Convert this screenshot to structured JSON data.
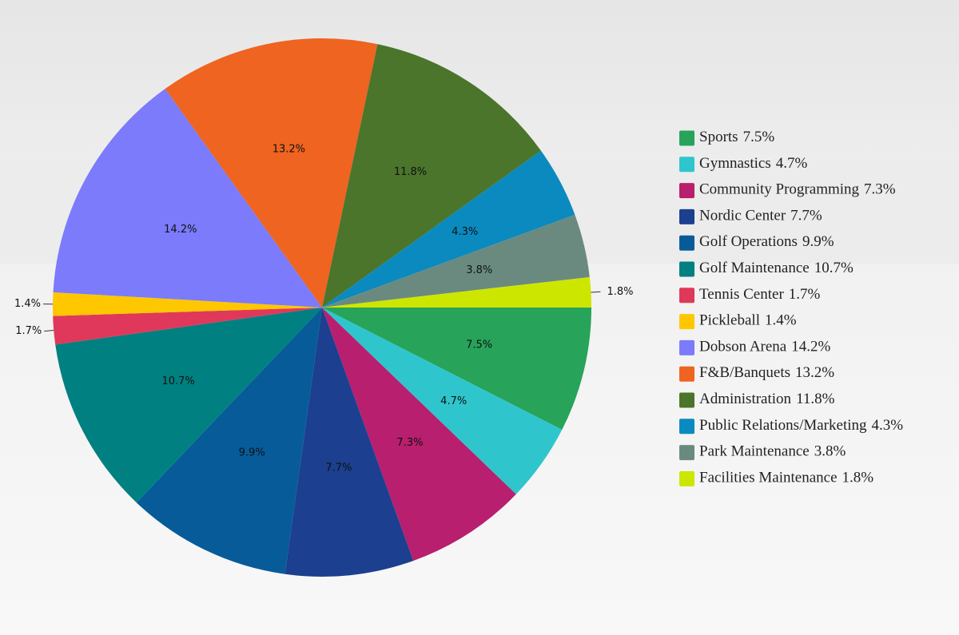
{
  "chart_data": {
    "type": "pie",
    "categories": [
      "Sports",
      "Gymnastics",
      "Community Programming",
      "Nordic Center",
      "Golf Operations",
      "Golf Maintenance",
      "Tennis Center",
      "Pickleball",
      "Dobson Arena",
      "F&B/Banquets",
      "Administration",
      "Public Relations/Marketing",
      "Park Maintenance",
      "Facilities Maintenance"
    ],
    "values": [
      7.5,
      4.7,
      7.3,
      7.7,
      9.9,
      10.7,
      1.7,
      1.4,
      14.2,
      13.2,
      11.8,
      4.3,
      3.8,
      1.8
    ],
    "value_labels": [
      "7.5%",
      "4.7%",
      "7.3%",
      "7.7%",
      "9.9%",
      "10.7%",
      "1.7%",
      "1.4%",
      "14.2%",
      "13.2%",
      "11.8%",
      "4.3%",
      "3.8%",
      "1.8%"
    ],
    "colors": [
      "#27a35a",
      "#2ec6cc",
      "#b81f6e",
      "#1c3f8f",
      "#075b99",
      "#008080",
      "#e0385a",
      "#ffc700",
      "#7b7bfb",
      "#ee6420",
      "#4a752b",
      "#0a8abf",
      "#6a8a80",
      "#cde600"
    ]
  }
}
